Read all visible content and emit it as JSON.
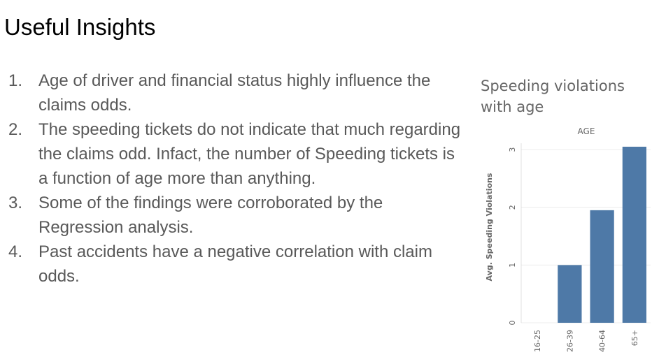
{
  "page": {
    "title": "Useful Insights",
    "insights": [
      {
        "num": "1.",
        "text": "Age of driver and financial status highly influence the claims odds."
      },
      {
        "num": "2.",
        "text": "The speeding tickets do not indicate that much regarding the claims odd. Infact, the number of Speeding tickets is a function of age more than anything."
      },
      {
        "num": "3.",
        "text": "Some of the findings were corroborated by the Regression analysis."
      },
      {
        "num": "4.",
        "text": "Past accidents have a negative correlation with claim odds."
      }
    ]
  },
  "chart_data": {
    "type": "bar",
    "title": "Speeding violations with age",
    "column_header": "AGE",
    "ylabel": "Avg. Speeding Violations",
    "xlabel": "",
    "categories": [
      "16-25",
      "26-39",
      "40-64",
      "65+"
    ],
    "values": [
      0,
      1.0,
      1.95,
      3.05
    ],
    "ylim": [
      0,
      3.05
    ],
    "yticks": [
      0,
      1,
      2,
      3
    ],
    "grid": true,
    "bar_color": "#4e79a7"
  }
}
